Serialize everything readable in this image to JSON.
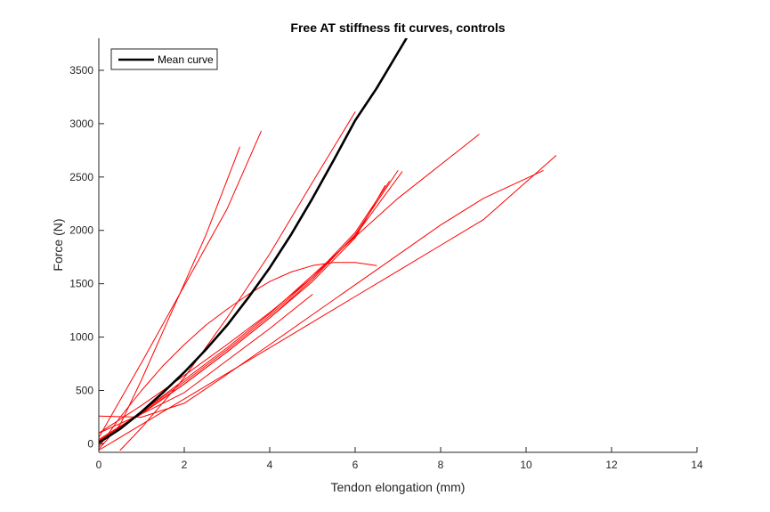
{
  "chart_data": {
    "type": "line",
    "title": "Free AT stiffness fit curves, controls",
    "xlabel": "Tendon elongation (mm)",
    "ylabel": "Force (N)",
    "xlim": [
      0,
      14
    ],
    "ylim": [
      -80,
      3800
    ],
    "xticks": [
      0,
      2,
      4,
      6,
      8,
      10,
      12,
      14
    ],
    "yticks": [
      0,
      500,
      1000,
      1500,
      2000,
      2500,
      3000,
      3500
    ],
    "grid": false,
    "legend": {
      "placement": "top-left",
      "entries": [
        {
          "label": "Mean curve",
          "color": "#000000"
        }
      ]
    },
    "colors": {
      "individual": "#ff0000",
      "mean": "#000000",
      "axis": "#262626"
    },
    "series": [
      {
        "name": "Mean curve",
        "color": "#000000",
        "width": 2.6,
        "x": [
          0,
          0.5,
          1,
          1.5,
          2,
          2.5,
          3,
          3.5,
          4,
          4.5,
          5,
          5.5,
          6,
          6.5,
          7.2
        ],
        "y": [
          10,
          140,
          300,
          480,
          670,
          880,
          1110,
          1370,
          1650,
          1960,
          2300,
          2660,
          3030,
          3330,
          3800
        ]
      },
      {
        "color": "#ff0000",
        "width": 1,
        "x": [
          0,
          0.5,
          1,
          1.5,
          2,
          2.5,
          3.3
        ],
        "y": [
          -50,
          180,
          600,
          1050,
          1500,
          1950,
          2780
        ]
      },
      {
        "color": "#ff0000",
        "width": 1,
        "x": [
          0,
          1,
          2,
          3,
          3.8
        ],
        "y": [
          60,
          760,
          1480,
          2200,
          2930
        ]
      },
      {
        "color": "#ff0000",
        "width": 1,
        "x": [
          0.5,
          1,
          2,
          3,
          4,
          5,
          6.0
        ],
        "y": [
          -60,
          150,
          620,
          1180,
          1780,
          2450,
          3110
        ]
      },
      {
        "color": "#ff0000",
        "width": 1,
        "x": [
          0,
          1,
          2,
          3,
          4,
          5,
          6,
          7,
          8.9
        ],
        "y": [
          20,
          300,
          600,
          900,
          1220,
          1580,
          1940,
          2300,
          2900
        ]
      },
      {
        "color": "#ff0000",
        "width": 1,
        "x": [
          0,
          1,
          2,
          3,
          4,
          5,
          6,
          7.1
        ],
        "y": [
          100,
          360,
          640,
          930,
          1230,
          1560,
          1950,
          2550
        ]
      },
      {
        "color": "#ff0000",
        "width": 1,
        "x": [
          0,
          1,
          2,
          3,
          4,
          5,
          6,
          7.0
        ],
        "y": [
          40,
          290,
          560,
          860,
          1180,
          1540,
          1960,
          2560
        ]
      },
      {
        "color": "#ff0000",
        "width": 1,
        "x": [
          0,
          1,
          2,
          3,
          4,
          5,
          6,
          6.8
        ],
        "y": [
          10,
          300,
          580,
          880,
          1200,
          1560,
          1980,
          2460
        ]
      },
      {
        "color": "#ff0000",
        "width": 1,
        "x": [
          0,
          1,
          2,
          3,
          4,
          5,
          6,
          6.7
        ],
        "y": [
          30,
          280,
          560,
          860,
          1180,
          1520,
          1930,
          2420
        ]
      },
      {
        "color": "#ff0000",
        "width": 1,
        "x": [
          0,
          0.5,
          1,
          1.5,
          2,
          2.5,
          3,
          3.5,
          4,
          4.5,
          5,
          5.5,
          6,
          6.5
        ],
        "y": [
          -30,
          250,
          500,
          730,
          930,
          1110,
          1260,
          1400,
          1520,
          1610,
          1670,
          1700,
          1700,
          1670
        ]
      },
      {
        "color": "#ff0000",
        "width": 1,
        "x": [
          0,
          1,
          2,
          3,
          4,
          5,
          6,
          7,
          8,
          9,
          10.4
        ],
        "y": [
          260,
          250,
          380,
          650,
          930,
          1210,
          1490,
          1770,
          2050,
          2300,
          2560
        ]
      },
      {
        "color": "#ff0000",
        "width": 1,
        "x": [
          0,
          1,
          2,
          3,
          4,
          5,
          6,
          7,
          8,
          9,
          10.7
        ],
        "y": [
          -60,
          180,
          420,
          660,
          900,
          1140,
          1380,
          1620,
          1860,
          2100,
          2700
        ]
      },
      {
        "color": "#ff0000",
        "width": 1,
        "x": [
          0,
          1,
          2,
          3,
          4,
          5
        ],
        "y": [
          100,
          280,
          480,
          780,
          1080,
          1400
        ]
      }
    ]
  }
}
